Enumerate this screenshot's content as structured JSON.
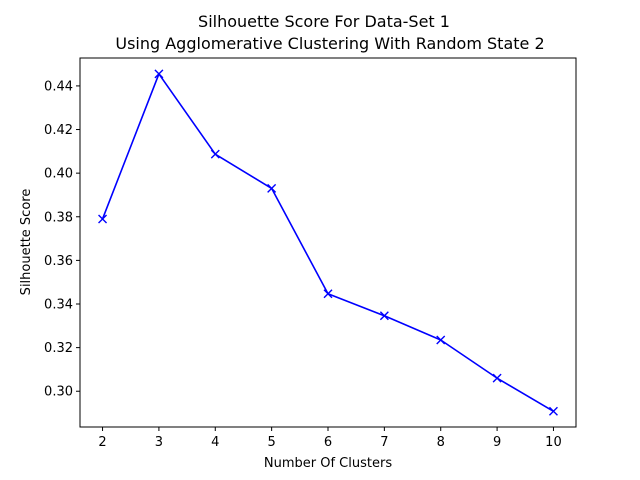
{
  "chart_data": {
    "type": "line",
    "title_line1": "Silhouette Score For Data-Set 1",
    "title_line2": "Using Agglomerative Clustering With Random State 2",
    "xlabel": "Number Of Clusters",
    "ylabel": "Silhouette Score",
    "x": [
      2,
      3,
      4,
      5,
      6,
      7,
      8,
      9,
      10
    ],
    "y": [
      0.379,
      0.4455,
      0.4087,
      0.393,
      0.3447,
      0.3346,
      0.3235,
      0.306,
      0.2908
    ],
    "xticks": [
      "2",
      "3",
      "4",
      "5",
      "6",
      "7",
      "8",
      "9",
      "10"
    ],
    "yticks": [
      "0.30",
      "0.32",
      "0.34",
      "0.36",
      "0.38",
      "0.40",
      "0.42",
      "0.44"
    ],
    "xlim": [
      1.6,
      10.4
    ],
    "ylim": [
      0.2836,
      0.4528
    ],
    "line_color": "#0000ff",
    "marker": "x",
    "grid": false
  }
}
